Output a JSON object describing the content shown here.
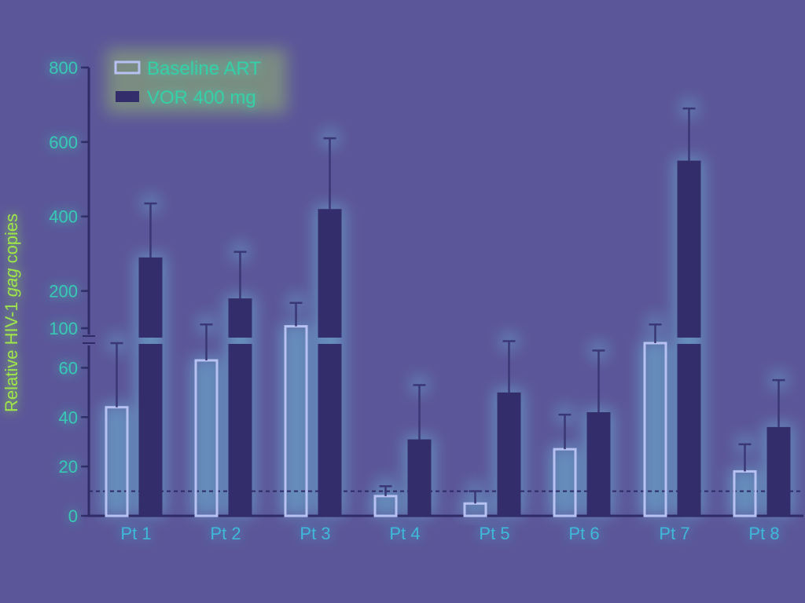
{
  "chart_data": {
    "type": "bar",
    "ylabel": {
      "pre": "Relative HIV-1 ",
      "italic": "gag",
      "post": " copies"
    },
    "categories": [
      "Pt 1",
      "Pt 2",
      "Pt 3",
      "Pt 4",
      "Pt 5",
      "Pt 6",
      "Pt 7",
      "Pt 8"
    ],
    "series": [
      {
        "name": "Baseline ART",
        "style": "open",
        "values": [
          44,
          63,
          105,
          8,
          5,
          27,
          70,
          18
        ],
        "errors": [
          70,
          110,
          168,
          12,
          10,
          41,
          110,
          29
        ]
      },
      {
        "name": "VOR 400 mg",
        "style": "filled",
        "values": [
          290,
          180,
          420,
          31,
          50,
          42,
          550,
          36
        ],
        "errors": [
          435,
          305,
          610,
          53,
          74,
          67,
          690,
          55
        ]
      }
    ],
    "y_axis_break": {
      "lower_range": [
        0,
        70
      ],
      "upper_range": [
        100,
        800
      ]
    },
    "yticks_lower": [
      0,
      20,
      40,
      60
    ],
    "yticks_upper": [
      100,
      200,
      400,
      600,
      800
    ],
    "reference_line": {
      "value": 10,
      "style": "dashed"
    },
    "legend_position": "top-left",
    "colors": {
      "background": "#5b5699",
      "open_bar": "#b7c2f2",
      "filled_bar": "#332e6b",
      "axis": "#2f2b66",
      "tick_text": "#38c9b5",
      "category_text": "#3fb8d9",
      "legend_text": "#35d0a8",
      "glow": "#7af7ff"
    }
  }
}
